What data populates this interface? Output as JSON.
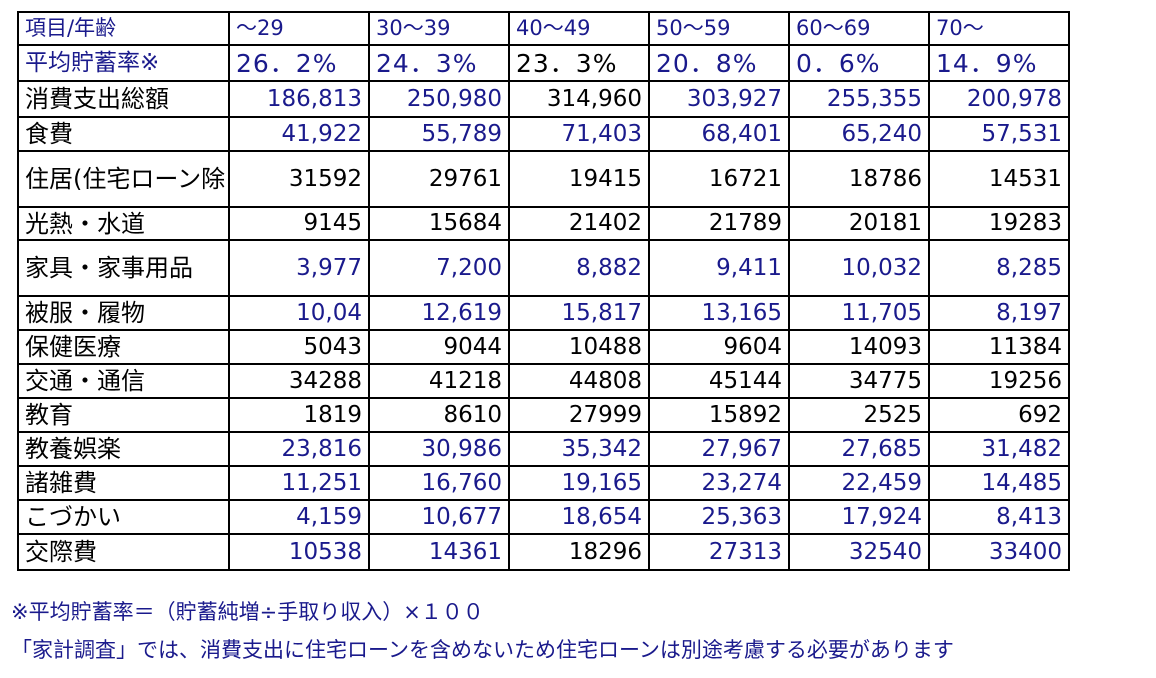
{
  "table": {
    "header": {
      "label": "項目/年齢",
      "columns": [
        "～29",
        "30～39",
        "40～49",
        "50～59",
        "60～69",
        "70～"
      ]
    },
    "rows": [
      {
        "label": "平均貯蓄率※",
        "values": [
          "26．2%",
          "24．3%",
          "23．3%",
          "20．8%",
          "0．6%",
          "14．9%"
        ],
        "colors": [
          "#1a1a8c",
          "#1a1a8c",
          "#000000",
          "#1a1a8c",
          "#1a1a8c",
          "#1a1a8c"
        ]
      },
      {
        "label": "消費支出総額",
        "values": [
          "186,813",
          "250,980",
          "314,960",
          "303,927",
          "255,355",
          "200,978"
        ],
        "colors": [
          "#1a1a8c",
          "#1a1a8c",
          "#000000",
          "#1a1a8c",
          "#1a1a8c",
          "#1a1a8c"
        ]
      },
      {
        "label": "食費",
        "values": [
          "41,922",
          "55,789",
          "71,403",
          "68,401",
          "65,240",
          "57,531"
        ],
        "colors": [
          "#1a1a8c",
          "#1a1a8c",
          "#1a1a8c",
          "#1a1a8c",
          "#1a1a8c",
          "#1a1a8c"
        ]
      },
      {
        "label": "住居(住宅ローン除く)",
        "values": [
          "31592",
          "29761",
          "19415",
          "16721",
          "18786",
          "14531"
        ],
        "colors": [
          "#000000",
          "#000000",
          "#000000",
          "#000000",
          "#000000",
          "#000000"
        ]
      },
      {
        "label": "光熱・水道",
        "values": [
          "9145",
          "15684",
          "21402",
          "21789",
          "20181",
          "19283"
        ],
        "colors": [
          "#000000",
          "#000000",
          "#000000",
          "#000000",
          "#000000",
          "#000000"
        ]
      },
      {
        "label": "家具・家事用品",
        "values": [
          "3,977",
          "7,200",
          "8,882",
          "9,411",
          "10,032",
          "8,285"
        ],
        "colors": [
          "#1a1a8c",
          "#1a1a8c",
          "#1a1a8c",
          "#1a1a8c",
          "#1a1a8c",
          "#1a1a8c"
        ]
      },
      {
        "label": "被服・履物",
        "values": [
          "10,04",
          "12,619",
          "15,817",
          "13,165",
          "11,705",
          "8,197"
        ],
        "colors": [
          "#1a1a8c",
          "#1a1a8c",
          "#1a1a8c",
          "#1a1a8c",
          "#1a1a8c",
          "#1a1a8c"
        ]
      },
      {
        "label": "保健医療",
        "values": [
          "5043",
          "9044",
          "10488",
          "9604",
          "14093",
          "11384"
        ],
        "colors": [
          "#000000",
          "#000000",
          "#000000",
          "#000000",
          "#000000",
          "#000000"
        ]
      },
      {
        "label": "交通・通信",
        "values": [
          "34288",
          "41218",
          "44808",
          "45144",
          "34775",
          "19256"
        ],
        "colors": [
          "#000000",
          "#000000",
          "#000000",
          "#000000",
          "#000000",
          "#000000"
        ]
      },
      {
        "label": "教育",
        "values": [
          "1819",
          "8610",
          "27999",
          "15892",
          "2525",
          "692"
        ],
        "colors": [
          "#000000",
          "#000000",
          "#000000",
          "#000000",
          "#000000",
          "#000000"
        ]
      },
      {
        "label": "教養娯楽",
        "values": [
          "23,816",
          "30,986",
          "35,342",
          "27,967",
          "27,685",
          "31,482"
        ],
        "colors": [
          "#1a1a8c",
          "#1a1a8c",
          "#1a1a8c",
          "#1a1a8c",
          "#1a1a8c",
          "#1a1a8c"
        ]
      },
      {
        "label": "諸雑費",
        "values": [
          "11,251",
          "16,760",
          "19,165",
          "23,274",
          "22,459",
          "14,485"
        ],
        "colors": [
          "#1a1a8c",
          "#1a1a8c",
          "#1a1a8c",
          "#1a1a8c",
          "#1a1a8c",
          "#1a1a8c"
        ]
      },
      {
        "label": "こづかい",
        "values": [
          "4,159",
          "10,677",
          "18,654",
          "25,363",
          "17,924",
          "8,413"
        ],
        "colors": [
          "#1a1a8c",
          "#1a1a8c",
          "#1a1a8c",
          "#1a1a8c",
          "#1a1a8c",
          "#1a1a8c"
        ]
      },
      {
        "label": "交際費",
        "values": [
          "10538",
          "14361",
          "18296",
          "27313",
          "32540",
          "33400"
        ],
        "colors": [
          "#1a1a8c",
          "#1a1a8c",
          "#000000",
          "#1a1a8c",
          "#1a1a8c",
          "#1a1a8c"
        ]
      }
    ]
  },
  "notes": {
    "formula": "※平均貯蓄率＝（貯蓄純増÷手取り収入）×１００",
    "caveat": "「家計調査」では、消費支出に住宅ローンを含めないため住宅ローンは別途考慮する必要があります"
  },
  "colors": {
    "navy": "#1a1a8c",
    "black": "#000000"
  }
}
